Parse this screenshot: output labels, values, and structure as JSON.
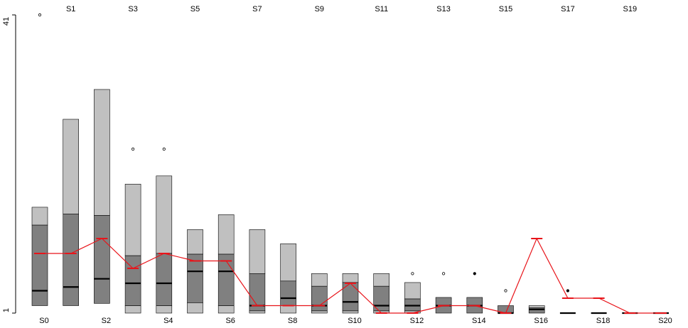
{
  "chart_data": {
    "type": "boxplot",
    "title": "",
    "xlabel": "",
    "ylabel": "",
    "ylim": [
      1,
      41
    ],
    "y_ticks": [
      "1",
      "41"
    ],
    "grid": false,
    "legend": "none",
    "colors": {
      "light_box": "#c0c0c0",
      "dark_box": "#808080",
      "median": "#000000",
      "line": "#e8141a",
      "outline": "#000000"
    },
    "categories": [
      "S0",
      "S1",
      "S2",
      "S3",
      "S4",
      "S5",
      "S6",
      "S7",
      "S8",
      "S9",
      "S10",
      "S11",
      "S12",
      "S13",
      "S14",
      "S15",
      "S16",
      "S17",
      "S18",
      "S19",
      "S20"
    ],
    "boxes": [
      {
        "low": 2.0,
        "q1": 2.0,
        "median": 4.0,
        "q3": 12.8,
        "high": 15.2,
        "mean": 9.0,
        "outliers": [
          {
            "v": 41.0,
            "filled": false
          }
        ]
      },
      {
        "low": 2.0,
        "q1": 2.0,
        "median": 4.5,
        "q3": 14.3,
        "high": 27.0,
        "mean": 9.0,
        "outliers": []
      },
      {
        "low": 2.3,
        "q1": 2.3,
        "median": 5.6,
        "q3": 14.1,
        "high": 31.0,
        "mean": 11.0,
        "outliers": []
      },
      {
        "low": 1.0,
        "q1": 2.0,
        "median": 5.0,
        "q3": 8.7,
        "high": 18.3,
        "mean": 7.0,
        "outliers": [
          {
            "v": 23.0,
            "filled": false
          }
        ]
      },
      {
        "low": 1.0,
        "q1": 2.0,
        "median": 5.0,
        "q3": 9.0,
        "high": 19.4,
        "mean": 9.0,
        "outliers": [
          {
            "v": 23.0,
            "filled": false
          }
        ]
      },
      {
        "low": 1.0,
        "q1": 2.4,
        "median": 6.6,
        "q3": 8.9,
        "high": 12.2,
        "mean": 8.0,
        "outliers": []
      },
      {
        "low": 1.0,
        "q1": 2.0,
        "median": 6.6,
        "q3": 8.9,
        "high": 14.2,
        "mean": 8.0,
        "outliers": []
      },
      {
        "low": 1.0,
        "q1": 1.3,
        "median": 2.0,
        "q3": 6.3,
        "high": 12.2,
        "mean": 2.0,
        "outliers": []
      },
      {
        "low": 1.0,
        "q1": 2.0,
        "median": 3.0,
        "q3": 5.3,
        "high": 10.3,
        "mean": 2.0,
        "outliers": []
      },
      {
        "low": 1.0,
        "q1": 1.3,
        "median": 2.0,
        "q3": 4.6,
        "high": 6.3,
        "mean": 2.0,
        "outliers": []
      },
      {
        "low": 1.0,
        "q1": 1.3,
        "median": 2.5,
        "q3": 5.1,
        "high": 6.3,
        "mean": 5.0,
        "outliers": []
      },
      {
        "low": 1.0,
        "q1": 1.3,
        "median": 2.0,
        "q3": 4.6,
        "high": 6.3,
        "mean": 1.0,
        "outliers": []
      },
      {
        "low": 1.0,
        "q1": 1.3,
        "median": 2.0,
        "q3": 2.9,
        "high": 5.1,
        "mean": 1.0,
        "outliers": [
          {
            "v": 6.3,
            "filled": false
          }
        ]
      },
      {
        "low": 1.0,
        "q1": 1.0,
        "median": 2.0,
        "q3": 3.1,
        "high": 3.1,
        "mean": 2.0,
        "outliers": [
          {
            "v": 6.3,
            "filled": false
          }
        ]
      },
      {
        "low": 1.0,
        "q1": 1.0,
        "median": 2.0,
        "q3": 3.1,
        "high": 3.1,
        "mean": 2.0,
        "outliers": [
          {
            "v": 6.3,
            "filled": true
          }
        ]
      },
      {
        "low": 1.0,
        "q1": 1.0,
        "median": 1.0,
        "q3": 2.0,
        "high": 2.0,
        "mean": 1.0,
        "outliers": [
          {
            "v": 4.0,
            "filled": false
          }
        ]
      },
      {
        "low": 1.0,
        "q1": 1.0,
        "median": 1.5,
        "q3": 1.7,
        "high": 2.0,
        "mean": 11.0,
        "outliers": []
      },
      {
        "low": 1.0,
        "q1": 1.0,
        "median": 1.0,
        "q3": 1.0,
        "high": 1.0,
        "mean": 3.0,
        "outliers": [
          {
            "v": 4.0,
            "filled": true
          }
        ]
      },
      {
        "low": 1.0,
        "q1": 1.0,
        "median": 1.0,
        "q3": 1.0,
        "high": 1.0,
        "mean": 3.0,
        "outliers": []
      },
      {
        "low": 1.0,
        "q1": 1.0,
        "median": 1.0,
        "q3": 1.0,
        "high": 1.0,
        "mean": 1.0,
        "outliers": []
      },
      {
        "low": 1.0,
        "q1": 1.0,
        "median": 1.0,
        "q3": 1.0,
        "high": 1.0,
        "mean": 1.0,
        "outliers": []
      }
    ]
  }
}
